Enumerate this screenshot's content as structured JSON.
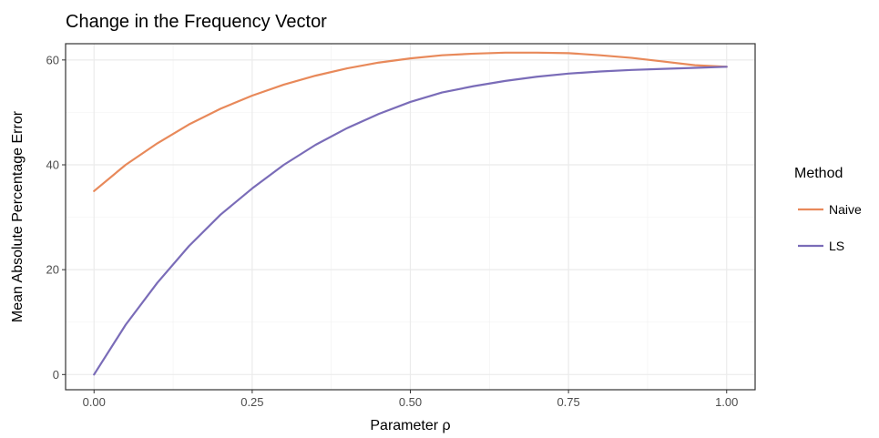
{
  "chart_data": {
    "type": "line",
    "title": "Change in the Frequency Vector",
    "xlabel": "Parameter ρ",
    "ylabel": "Mean Absolute Percentage Error",
    "xlim": [
      -0.045,
      1.045
    ],
    "ylim": [
      -2.9,
      63.1
    ],
    "x_ticks": [
      0,
      0.25,
      0.5,
      0.75,
      1
    ],
    "x_tick_labels": [
      "0.00",
      "0.25",
      "0.50",
      "0.75",
      "1.00"
    ],
    "y_ticks": [
      0,
      20,
      40,
      60
    ],
    "y_tick_labels": [
      "0",
      "20",
      "40",
      "60"
    ],
    "grid": true,
    "legend": {
      "title": "Method",
      "position": "right"
    },
    "x": [
      0,
      0.05,
      0.1,
      0.15,
      0.2,
      0.25,
      0.3,
      0.35,
      0.4,
      0.45,
      0.5,
      0.55,
      0.6,
      0.65,
      0.7,
      0.75,
      0.8,
      0.85,
      0.9,
      0.95,
      1.0
    ],
    "series": [
      {
        "name": "Naive",
        "color": "#e8895a",
        "values": [
          35.0,
          40.0,
          44.1,
          47.7,
          50.7,
          53.2,
          55.3,
          57.0,
          58.4,
          59.5,
          60.3,
          60.9,
          61.2,
          61.4,
          61.4,
          61.3,
          60.9,
          60.4,
          59.7,
          59.0,
          58.7
        ]
      },
      {
        "name": "LS",
        "color": "#7a6cb8",
        "values": [
          0.0,
          9.5,
          17.5,
          24.5,
          30.5,
          35.5,
          40.0,
          43.8,
          47.0,
          49.7,
          52.0,
          53.8,
          55.0,
          56.0,
          56.8,
          57.4,
          57.8,
          58.1,
          58.3,
          58.5,
          58.7
        ]
      }
    ]
  }
}
